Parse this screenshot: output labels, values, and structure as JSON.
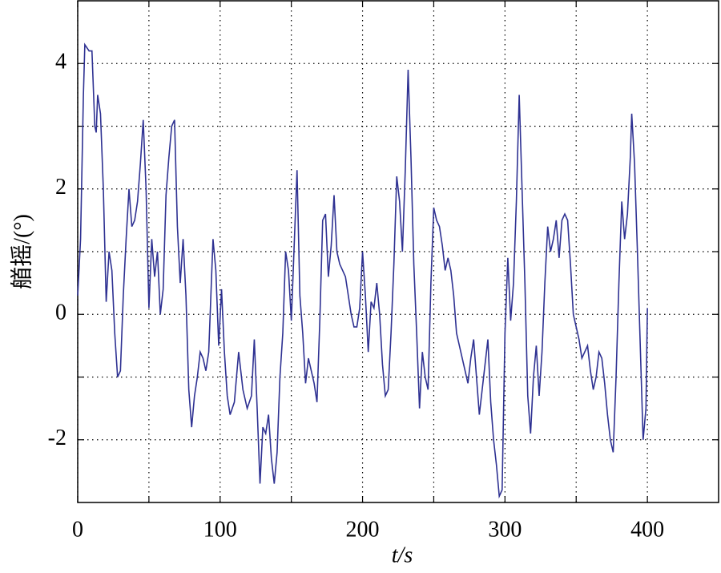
{
  "chart_data": {
    "type": "line",
    "xlabel": "t/s",
    "ylabel": "艏摇/(°)",
    "xlim": [
      0,
      450
    ],
    "xticks": [
      0,
      100,
      200,
      300,
      400
    ],
    "xgrid_minor": [
      50,
      150,
      250,
      350
    ],
    "ylim": [
      -3,
      5
    ],
    "yticks": [
      -2,
      0,
      2,
      4
    ],
    "ygrid_minor": [
      -1,
      1,
      3
    ],
    "grid": true,
    "series": [
      {
        "color": "#2e3192",
        "x": [
          0,
          2,
          4,
          5,
          8,
          10,
          12,
          13,
          14,
          16,
          18,
          20,
          22,
          24,
          26,
          28,
          30,
          32,
          34,
          36,
          38,
          40,
          42,
          44,
          46,
          48,
          50,
          52,
          54,
          56,
          58,
          60,
          62,
          64,
          66,
          68,
          70,
          72,
          74,
          76,
          78,
          80,
          82,
          84,
          86,
          88,
          90,
          92,
          95,
          97,
          99,
          101,
          103,
          105,
          107,
          110,
          113,
          116,
          119,
          122,
          124,
          126,
          128,
          130,
          132,
          134,
          136,
          138,
          140,
          142,
          144,
          146,
          148,
          150,
          152,
          154,
          156,
          158,
          160,
          162,
          164,
          166,
          168,
          170,
          172,
          174,
          176,
          178,
          180,
          182,
          184,
          186,
          188,
          190,
          192,
          194,
          196,
          198,
          200,
          202,
          204,
          206,
          208,
          210,
          212,
          214,
          216,
          218,
          220,
          222,
          224,
          226,
          228,
          230,
          232,
          234,
          236,
          238,
          240,
          242,
          244,
          246,
          248,
          250,
          252,
          254,
          256,
          258,
          260,
          262,
          264,
          266,
          268,
          270,
          272,
          274,
          276,
          278,
          280,
          282,
          284,
          286,
          288,
          290,
          292,
          294,
          296,
          298,
          300,
          302,
          304,
          306,
          308,
          310,
          312,
          314,
          316,
          318,
          320,
          322,
          324,
          326,
          328,
          330,
          332,
          334,
          336,
          338,
          340,
          342,
          344,
          346,
          348,
          350,
          352,
          354,
          356,
          358,
          360,
          362,
          364,
          366,
          368,
          370,
          372,
          374,
          376,
          378,
          380,
          382,
          384,
          386,
          388,
          389,
          391,
          393,
          395,
          397,
          399,
          400
        ],
        "values": [
          0.3,
          1.2,
          3.5,
          4.3,
          4.2,
          4.2,
          3.0,
          2.9,
          3.5,
          3.2,
          2.0,
          0.2,
          1.0,
          0.7,
          -0.3,
          -1.0,
          -0.9,
          0.3,
          1.2,
          2.0,
          1.4,
          1.5,
          1.8,
          2.4,
          3.1,
          2.0,
          0.1,
          1.2,
          0.6,
          1.0,
          0.0,
          0.4,
          1.9,
          2.5,
          3.0,
          3.1,
          1.4,
          0.5,
          1.2,
          0.3,
          -1.2,
          -1.8,
          -1.3,
          -1.0,
          -0.6,
          -0.7,
          -0.9,
          -0.6,
          1.2,
          0.7,
          -0.5,
          0.4,
          -0.6,
          -1.3,
          -1.6,
          -1.4,
          -0.6,
          -1.2,
          -1.5,
          -1.3,
          -0.4,
          -1.5,
          -2.7,
          -1.8,
          -1.9,
          -1.6,
          -2.3,
          -2.7,
          -2.2,
          -1.0,
          -0.3,
          1.0,
          0.7,
          -0.1,
          1.1,
          2.3,
          0.3,
          -0.3,
          -1.1,
          -0.7,
          -0.9,
          -1.1,
          -1.4,
          -0.1,
          1.5,
          1.6,
          0.6,
          1.1,
          1.9,
          1.0,
          0.8,
          0.7,
          0.6,
          0.3,
          0.0,
          -0.2,
          -0.2,
          0.1,
          1.0,
          0.3,
          -0.6,
          0.2,
          0.1,
          0.5,
          0.0,
          -0.8,
          -1.3,
          -1.2,
          -0.3,
          0.8,
          2.2,
          1.8,
          1.0,
          2.3,
          3.9,
          2.5,
          0.8,
          -0.3,
          -1.5,
          -0.6,
          -1.0,
          -1.2,
          0.5,
          1.7,
          1.5,
          1.4,
          1.1,
          0.7,
          0.9,
          0.7,
          0.3,
          -0.3,
          -0.5,
          -0.7,
          -0.9,
          -1.1,
          -0.7,
          -0.4,
          -1.0,
          -1.6,
          -1.2,
          -0.8,
          -0.4,
          -1.4,
          -2.0,
          -2.4,
          -2.9,
          -2.8,
          -0.3,
          0.9,
          -0.1,
          0.5,
          1.8,
          3.5,
          2.0,
          0.5,
          -1.3,
          -1.9,
          -1.0,
          -0.5,
          -1.3,
          -0.6,
          0.5,
          1.4,
          1.0,
          1.2,
          1.5,
          0.9,
          1.5,
          1.6,
          1.5,
          0.8,
          0.0,
          -0.2,
          -0.4,
          -0.7,
          -0.6,
          -0.5,
          -0.9,
          -1.2,
          -1.0,
          -0.6,
          -0.7,
          -1.1,
          -1.6,
          -2.0,
          -2.2,
          -1.0,
          0.5,
          1.8,
          1.2,
          1.6,
          2.5,
          3.2,
          2.4,
          1.0,
          -0.5,
          -2.0,
          -1.5,
          0.1
        ]
      }
    ]
  }
}
